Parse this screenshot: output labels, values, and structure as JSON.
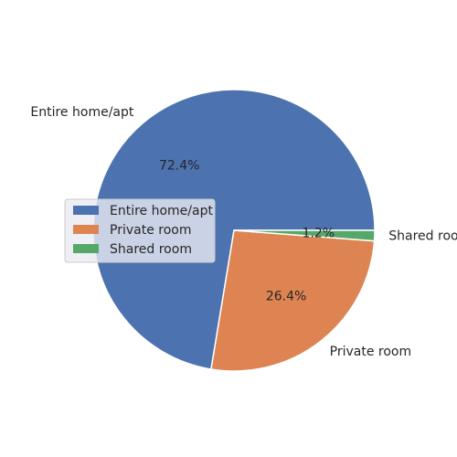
{
  "chart_data": {
    "type": "pie",
    "categories": [
      "Entire home/apt",
      "Private room",
      "Shared room"
    ],
    "values": [
      72.4,
      26.4,
      1.2
    ],
    "value_labels": [
      "72.4%",
      "26.4%",
      "1.2%"
    ],
    "colors": [
      "#4c72b0",
      "#dd8452",
      "#55a868"
    ],
    "title": "",
    "legend": {
      "placement": "center-left",
      "entries": [
        "Entire home/apt",
        "Private room",
        "Shared room"
      ]
    }
  }
}
